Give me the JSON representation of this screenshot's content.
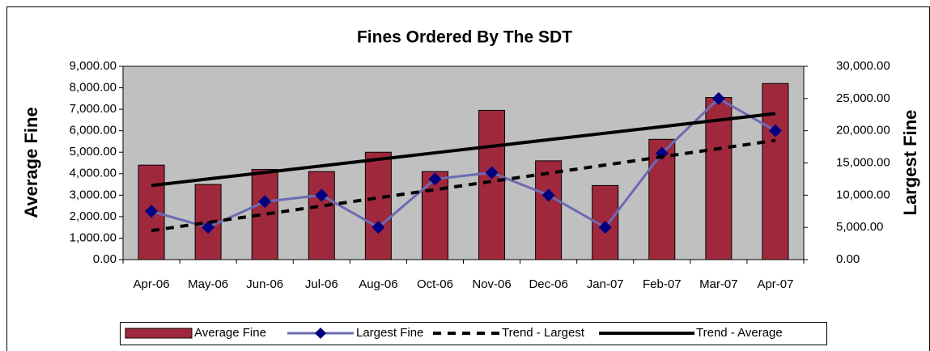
{
  "chart_data": {
    "type": "bar-line",
    "title": "Fines Ordered By The SDT",
    "y_label": "Average Fine",
    "y2_label": "Largest Fine",
    "categories": [
      "Apr-06",
      "May-06",
      "Jun-06",
      "Jul-06",
      "Aug-06",
      "Oct-06",
      "Nov-06",
      "Dec-06",
      "Jan-07",
      "Feb-07",
      "Mar-07",
      "Apr-07"
    ],
    "series": [
      {
        "name": "Average Fine",
        "kind": "bar",
        "color": "#a0283c",
        "values": [
          4400,
          3500,
          4200,
          4100,
          5000,
          4100,
          6950,
          4600,
          3450,
          5600,
          7550,
          8200
        ]
      },
      {
        "name": "Largest Fine",
        "kind": "line",
        "marker": "diamond",
        "color": "#6b6bb3",
        "marker_color": "#000080",
        "axis": "y2",
        "values": [
          7500,
          5000,
          9000,
          10000,
          5000,
          12500,
          13500,
          10000,
          5000,
          16500,
          25000,
          20000
        ]
      },
      {
        "name": "Trend - Largest",
        "kind": "dashed",
        "color": "#000000",
        "axis": "y2",
        "values": [
          4500,
          5773,
          7045,
          8318,
          9591,
          10864,
          12136,
          13409,
          14682,
          15955,
          17227,
          18500
        ]
      },
      {
        "name": "Trend - Average",
        "kind": "solid",
        "color": "#000000",
        "values": [
          3450,
          3755,
          4059,
          4364,
          4668,
          4973,
          5277,
          5582,
          5886,
          6191,
          6495,
          6800
        ]
      }
    ],
    "ylim": [
      0,
      9000
    ],
    "yticks": [
      {
        "value": 0,
        "label": "0.00"
      },
      {
        "value": 1000,
        "label": "1,000.00"
      },
      {
        "value": 2000,
        "label": "2,000.00"
      },
      {
        "value": 3000,
        "label": "3,000.00"
      },
      {
        "value": 4000,
        "label": "4,000.00"
      },
      {
        "value": 5000,
        "label": "5,000.00"
      },
      {
        "value": 6000,
        "label": "6,000.00"
      },
      {
        "value": 7000,
        "label": "7,000.00"
      },
      {
        "value": 8000,
        "label": "8,000.00"
      },
      {
        "value": 9000,
        "label": "9,000.00"
      }
    ],
    "y2lim": [
      0,
      30000
    ],
    "y2ticks": [
      {
        "value": 0,
        "label": "0.00"
      },
      {
        "value": 5000,
        "label": "5,000.00"
      },
      {
        "value": 10000,
        "label": "10,000.00"
      },
      {
        "value": 15000,
        "label": "15,000.00"
      },
      {
        "value": 20000,
        "label": "20,000.00"
      },
      {
        "value": 25000,
        "label": "25,000.00"
      },
      {
        "value": 30000,
        "label": "30,000.00"
      }
    ],
    "plot_background": "#c0c0c0",
    "legend": "bottom"
  }
}
